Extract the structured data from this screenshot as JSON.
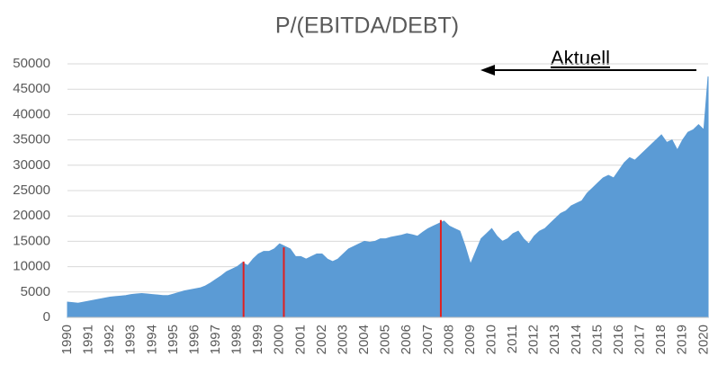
{
  "chart_data": {
    "type": "area",
    "title": "P/(EBITDA/DEBT)",
    "annotation": "Aktuell",
    "x": [
      1990,
      1990.25,
      1990.5,
      1990.75,
      1991,
      1991.25,
      1991.5,
      1991.75,
      1992,
      1992.25,
      1992.5,
      1992.75,
      1993,
      1993.25,
      1993.5,
      1993.75,
      1994,
      1994.25,
      1994.5,
      1994.75,
      1995,
      1995.25,
      1995.5,
      1995.75,
      1996,
      1996.25,
      1996.5,
      1996.75,
      1997,
      1997.25,
      1997.5,
      1997.75,
      1998,
      1998.25,
      1998.5,
      1998.75,
      1999,
      1999.25,
      1999.5,
      1999.75,
      2000,
      2000.25,
      2000.5,
      2000.75,
      2001,
      2001.25,
      2001.5,
      2001.75,
      2002,
      2002.25,
      2002.5,
      2002.75,
      2003,
      2003.25,
      2003.5,
      2003.75,
      2004,
      2004.25,
      2004.5,
      2004.75,
      2005,
      2005.25,
      2005.5,
      2005.75,
      2006,
      2006.25,
      2006.5,
      2006.75,
      2007,
      2007.25,
      2007.5,
      2007.75,
      2008,
      2008.25,
      2008.5,
      2008.75,
      2009,
      2009.25,
      2009.5,
      2009.75,
      2010,
      2010.25,
      2010.5,
      2010.75,
      2011,
      2011.25,
      2011.5,
      2011.75,
      2012,
      2012.25,
      2012.5,
      2012.75,
      2013,
      2013.25,
      2013.5,
      2013.75,
      2014,
      2014.25,
      2014.5,
      2014.75,
      2015,
      2015.25,
      2015.5,
      2015.75,
      2016,
      2016.25,
      2016.5,
      2016.75,
      2017,
      2017.25,
      2017.5,
      2017.75,
      2018,
      2018.25,
      2018.5,
      2018.75,
      2019,
      2019.25,
      2019.5,
      2019.75,
      2020,
      2020.2
    ],
    "series": [
      {
        "color": "#5b9bd5",
        "values": [
          3000,
          2900,
          2800,
          3000,
          3200,
          3400,
          3600,
          3800,
          4000,
          4100,
          4200,
          4300,
          4500,
          4600,
          4700,
          4600,
          4500,
          4400,
          4300,
          4300,
          4600,
          4900,
          5200,
          5400,
          5600,
          5800,
          6200,
          6800,
          7500,
          8200,
          9000,
          9500,
          10000,
          10800,
          10200,
          11500,
          12500,
          13000,
          13000,
          13500,
          14500,
          14000,
          13500,
          12000,
          12000,
          11500,
          12000,
          12500,
          12500,
          11500,
          11000,
          11500,
          12500,
          13500,
          14000,
          14500,
          15000,
          14800,
          15000,
          15500,
          15500,
          15800,
          16000,
          16200,
          16500,
          16300,
          16000,
          16800,
          17500,
          18000,
          18500,
          19000,
          18000,
          17500,
          17000,
          14000,
          10500,
          13000,
          15500,
          16500,
          17500,
          16000,
          15000,
          15500,
          16500,
          17000,
          15500,
          14500,
          16000,
          17000,
          17500,
          18500,
          19500,
          20500,
          21000,
          22000,
          22500,
          23000,
          24500,
          25500,
          26500,
          27500,
          28000,
          27500,
          29000,
          30500,
          31500,
          31000,
          32000,
          33000,
          34000,
          35000,
          36000,
          34500,
          35000,
          33000,
          35000,
          36500,
          37000,
          38000,
          37000,
          47500
        ]
      }
    ],
    "highlights": {
      "color": "#e02020",
      "x": [
        1998.3,
        2000.2,
        2007.6
      ],
      "values": [
        11000,
        13800,
        19200
      ]
    },
    "xlim": [
      1990,
      2020.2
    ],
    "xticks": [
      1990,
      1991,
      1992,
      1993,
      1994,
      1995,
      1996,
      1997,
      1998,
      1999,
      2000,
      2001,
      2002,
      2003,
      2004,
      2005,
      2006,
      2007,
      2008,
      2009,
      2010,
      2011,
      2012,
      2013,
      2014,
      2015,
      2016,
      2017,
      2018,
      2019,
      2020
    ],
    "ylim": [
      0,
      50000
    ],
    "yticks": [
      0,
      5000,
      10000,
      15000,
      20000,
      25000,
      30000,
      35000,
      40000,
      45000,
      50000
    ],
    "grid": true
  }
}
